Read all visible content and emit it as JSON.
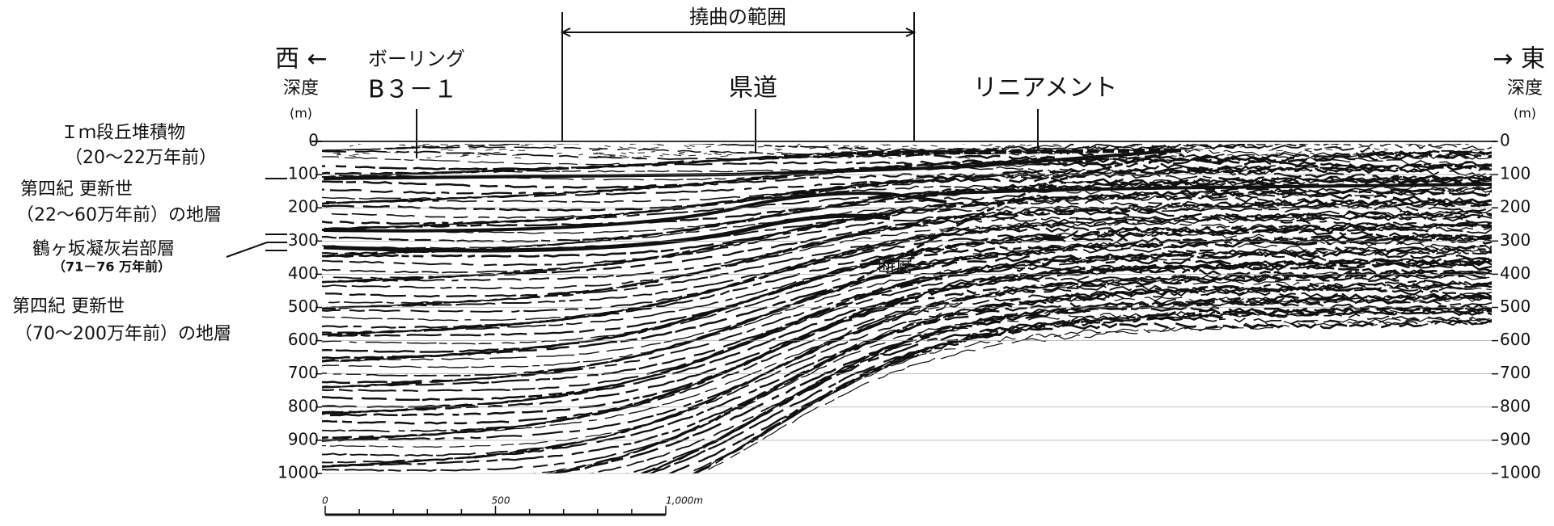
{
  "header": {
    "range_label": "撓曲の範囲",
    "west": "西 ←",
    "east": "→ 東",
    "boring_label": "ボーリング",
    "boring_id": "B３－１",
    "prefectural_road": "県道",
    "lineament": "リニアメント",
    "fault": "断層"
  },
  "depth_axis": {
    "left_title": "深度",
    "left_unit": "(m)",
    "right_title": "深度",
    "right_unit": "(m)",
    "ticks": [
      0,
      100,
      200,
      300,
      400,
      500,
      600,
      700,
      800,
      900,
      1000
    ]
  },
  "strata": [
    {
      "name": "Ｉｍ段丘堆積物",
      "age": "（20～22万年前）"
    },
    {
      "name": "第四紀 更新世",
      "age": "（22～60万年前）の地層"
    },
    {
      "name": "鶴ヶ坂凝灰岩部層",
      "age": "（71－76 万年前）"
    },
    {
      "name": "第四紀 更新世",
      "age": "（70～200万年前）の地層"
    }
  ],
  "scale_bar": {
    "labels": [
      "0",
      "500",
      "1,000m"
    ]
  }
}
